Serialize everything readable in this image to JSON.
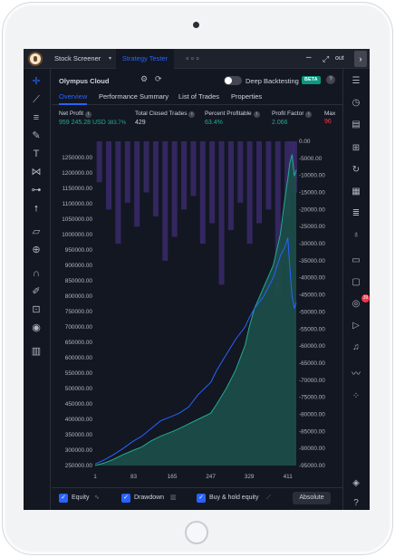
{
  "topbar": {
    "tabs": [
      "Stock Screener",
      "Strategy Tester"
    ],
    "more": "∘∘∘",
    "minimize": "–",
    "expand": "⤢",
    "right_label": "out",
    "arrow": "›"
  },
  "strategy": {
    "name": "Olympus Cloud",
    "deep_backtesting_label": "Deep Backtesting",
    "beta_badge": "BETA",
    "help": "?"
  },
  "panel_tabs": [
    "Overview",
    "Performance Summary",
    "List of Trades",
    "Properties"
  ],
  "metrics": {
    "net_profit": {
      "label": "Net Profit",
      "value": "959 245.28 USD",
      "percent": "383.7%"
    },
    "total_closed_trades": {
      "label": "Total Closed Trades",
      "value": "429"
    },
    "percent_profitable": {
      "label": "Percent Profitable",
      "value": "63.4%"
    },
    "profit_factor": {
      "label": "Profit Factor",
      "value": "2.066"
    },
    "max_drawdown": {
      "label": "Max",
      "value": "96"
    }
  },
  "legend": {
    "equity": "Equity",
    "drawdown": "Drawdown",
    "buy_hold": "Buy & hold equity",
    "absolute_button": "Absolute"
  },
  "colors": {
    "equity_fill": "#1d4f4a",
    "equity_line": "#22ab94",
    "buy_hold_line": "#2962ff",
    "drawdown_bars": "#3b2a6b",
    "accent": "#2962ff"
  },
  "icons": {
    "left": [
      "crosshair-icon",
      "trend-line-icon",
      "fib-icon",
      "brush-icon",
      "text-icon",
      "pattern-icon",
      "forecast-icon",
      "arrow-up-icon",
      "ruler-icon",
      "zoom-icon",
      "magnet-icon",
      "lock-drawing-icon",
      "lock-icon",
      "eye-icon",
      "trash-icon"
    ],
    "right": [
      "watchlist-icon",
      "alarm-icon",
      "news-icon",
      "add-list-icon",
      "refresh-icon",
      "calendar-grid-icon",
      "list-icon",
      "bulb-icon",
      "chat-icon",
      "comment-icon",
      "podcast-icon",
      "play-icon",
      "bell-icon",
      "trend-icon",
      "cluster-icon",
      "layers-icon",
      "help-icon"
    ],
    "notification_count": "39"
  },
  "chart_data": {
    "type": "area",
    "x_ticks": [
      1,
      83,
      165,
      247,
      329,
      411
    ],
    "x_range": [
      1,
      429
    ],
    "left_axis": {
      "ticks": [
        "1250000.00",
        "1200000.00",
        "1150000.00",
        "1100000.00",
        "1050000.00",
        "1000000.00",
        "950000.00",
        "900000.00",
        "850000.00",
        "800000.00",
        "750000.00",
        "700000.00",
        "650000.00",
        "600000.00",
        "550000.00",
        "500000.00",
        "450000.00",
        "400000.00",
        "350000.00",
        "300000.00",
        "250000.00"
      ],
      "range": [
        250000,
        1250000
      ]
    },
    "right_axis": {
      "ticks": [
        "0.00",
        "-5000.00",
        "-10000.00",
        "-15000.00",
        "-20000.00",
        "-25000.00",
        "-30000.00",
        "-35000.00",
        "-40000.00",
        "-45000.00",
        "-50000.00",
        "-55000.00",
        "-60000.00",
        "-65000.00",
        "-70000.00",
        "-75000.00",
        "-80000.00",
        "-85000.00",
        "-90000.00",
        "-95000.00"
      ],
      "range": [
        -95000,
        0
      ]
    },
    "series": [
      {
        "name": "Equity",
        "x": [
          1,
          20,
          40,
          60,
          83,
          100,
          120,
          140,
          165,
          180,
          200,
          220,
          247,
          260,
          280,
          300,
          320,
          329,
          340,
          360,
          380,
          395,
          405,
          411,
          415,
          420,
          425,
          429
        ],
        "values": [
          250000,
          258000,
          270000,
          285000,
          300000,
          310000,
          330000,
          345000,
          360000,
          370000,
          385000,
          400000,
          420000,
          450000,
          500000,
          560000,
          640000,
          700000,
          760000,
          830000,
          900000,
          1000000,
          1120000,
          1180000,
          1230000,
          1260000,
          1190000,
          1210000
        ]
      },
      {
        "name": "Buy & hold equity",
        "x": [
          1,
          20,
          40,
          60,
          83,
          100,
          120,
          140,
          165,
          180,
          200,
          220,
          247,
          260,
          280,
          300,
          320,
          329,
          340,
          360,
          380,
          395,
          405,
          411,
          415,
          420,
          425,
          429
        ],
        "values": [
          255000,
          268000,
          285000,
          305000,
          330000,
          345000,
          370000,
          395000,
          410000,
          420000,
          440000,
          480000,
          520000,
          560000,
          610000,
          660000,
          700000,
          730000,
          760000,
          800000,
          860000,
          930000,
          960000,
          990000,
          900000,
          800000,
          760000,
          780000
        ]
      },
      {
        "name": "Drawdown",
        "x": [
          10,
          30,
          50,
          70,
          90,
          110,
          130,
          150,
          170,
          190,
          210,
          230,
          250,
          270,
          290,
          310,
          330,
          350,
          370,
          390,
          410,
          420,
          425
        ],
        "values": [
          -12000,
          -20000,
          -30000,
          -18000,
          -25000,
          -15000,
          -22000,
          -35000,
          -28000,
          -20000,
          -16000,
          -30000,
          -24000,
          -42000,
          -26000,
          -18000,
          -30000,
          -24000,
          -20000,
          -45000,
          -22000,
          -8000,
          -15000
        ]
      }
    ],
    "grid": false
  }
}
